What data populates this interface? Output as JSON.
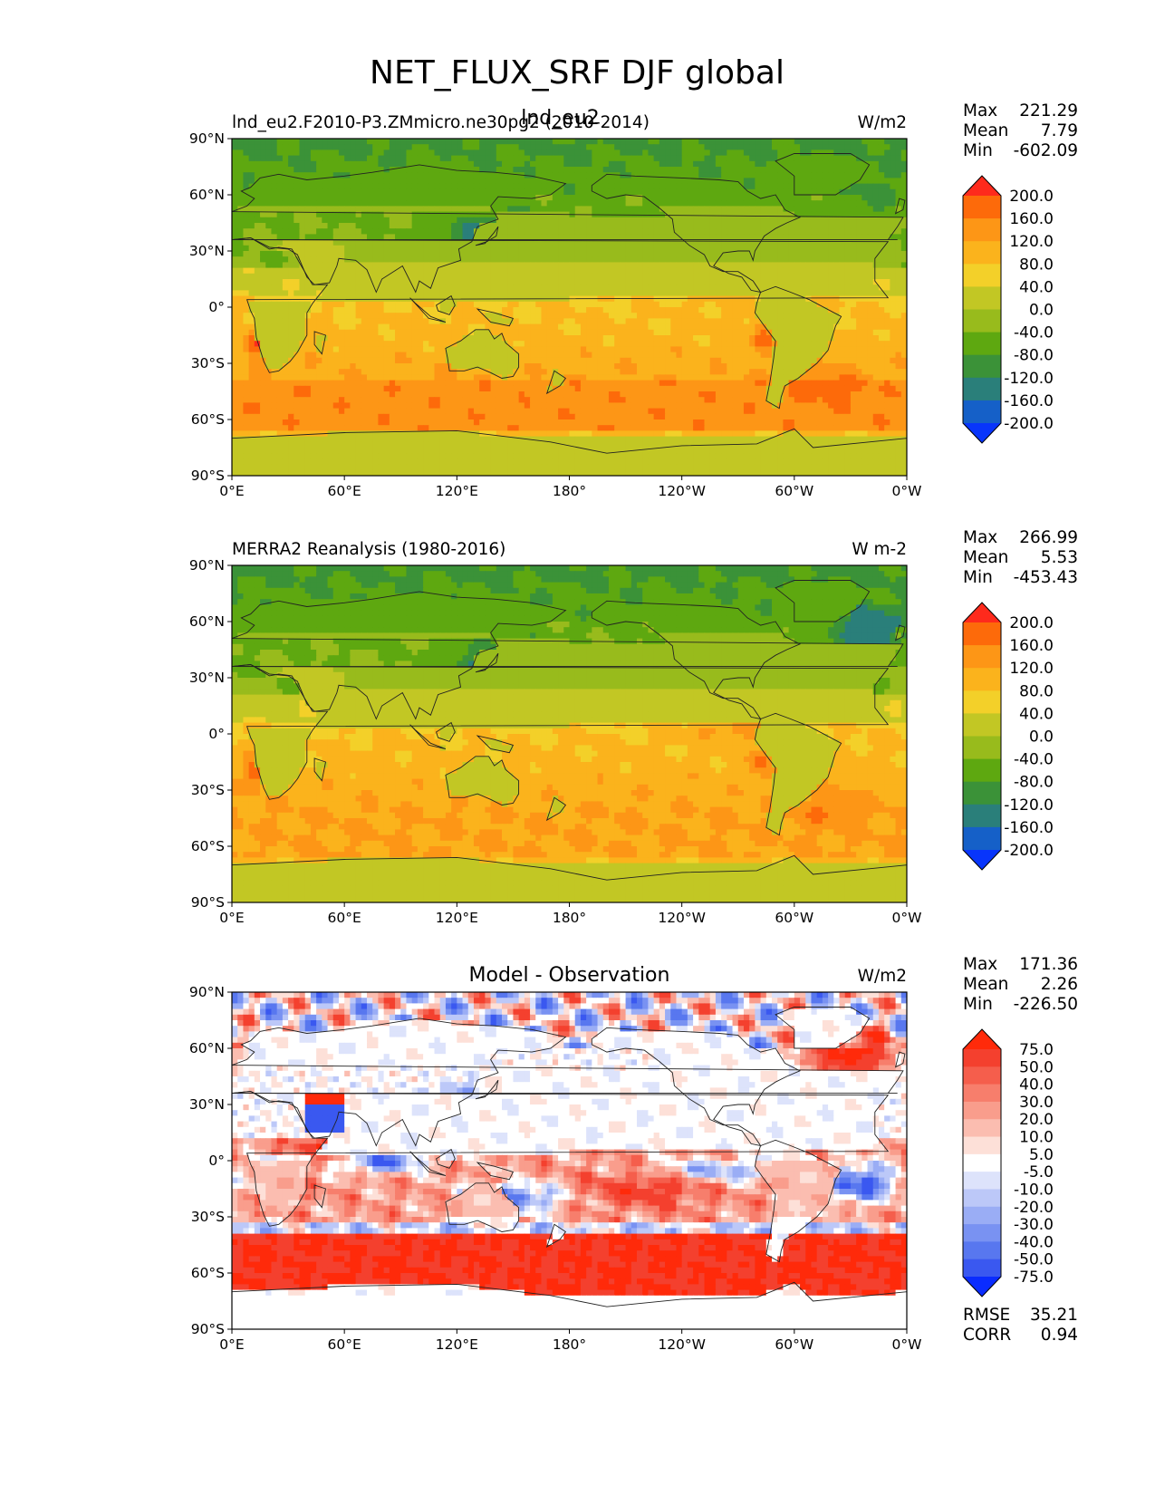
{
  "figure": {
    "suptitle": "NET_FLUX_SRF DJF global",
    "model_case_overlay": "lnd_eu2"
  },
  "axes": {
    "lat_ticks": [
      "90°N",
      "60°N",
      "30°N",
      "0°",
      "30°S",
      "60°S",
      "90°S"
    ],
    "lon_ticks": [
      "0°E",
      "60°E",
      "120°E",
      "180°",
      "120°W",
      "60°W",
      "0°W"
    ]
  },
  "chart_data": [
    {
      "type": "heatmap",
      "panel": "test",
      "title": "",
      "left_title": "lnd_eu2.F2010-P3.ZMmicro.ne30pg2 (2010-2014)",
      "right_title": "W/m2",
      "xlim": [
        0,
        360
      ],
      "ylim": [
        -90,
        90
      ],
      "stats": [
        {
          "label": "Max",
          "value": "221.29"
        },
        {
          "label": "Mean",
          "value": "7.79"
        },
        {
          "label": "Min",
          "value": "-602.09"
        }
      ],
      "colorbar": {
        "levels": [
          "200.0",
          "160.0",
          "120.0",
          "80.0",
          "40.0",
          "0.0",
          "-40.0",
          "-80.0",
          "-120.0",
          "-160.0",
          "-200.0"
        ],
        "colors": [
          "#fe2a1c",
          "#fd6a0a",
          "#fd9616",
          "#fbb31c",
          "#f3d029",
          "#c2c724",
          "#98bb1c",
          "#5ea810",
          "#3b9238",
          "#2a7f7a",
          "#1560c8",
          "#0835fb"
        ]
      }
    },
    {
      "type": "heatmap",
      "panel": "reference",
      "title": "",
      "left_title": "MERRA2 Reanalysis (1980-2016)",
      "right_title": "W m-2",
      "xlim": [
        0,
        360
      ],
      "ylim": [
        -90,
        90
      ],
      "stats": [
        {
          "label": "Max",
          "value": "266.99"
        },
        {
          "label": "Mean",
          "value": "5.53"
        },
        {
          "label": "Min",
          "value": "-453.43"
        }
      ],
      "colorbar": {
        "levels": [
          "200.0",
          "160.0",
          "120.0",
          "80.0",
          "40.0",
          "0.0",
          "-40.0",
          "-80.0",
          "-120.0",
          "-160.0",
          "-200.0"
        ],
        "colors": [
          "#fe2a1c",
          "#fd6a0a",
          "#fd9616",
          "#fbb31c",
          "#f3d029",
          "#c2c724",
          "#98bb1c",
          "#5ea810",
          "#3b9238",
          "#2a7f7a",
          "#1560c8",
          "#0835fb"
        ]
      }
    },
    {
      "type": "heatmap",
      "panel": "difference",
      "title": "Model - Observation",
      "left_title": "",
      "right_title": "W/m2",
      "xlim": [
        0,
        360
      ],
      "ylim": [
        -90,
        90
      ],
      "stats": [
        {
          "label": "Max",
          "value": "171.36"
        },
        {
          "label": "Mean",
          "value": "2.26"
        },
        {
          "label": "Min",
          "value": "-226.50"
        }
      ],
      "extra_stats": [
        {
          "label": "RMSE",
          "value": "35.21"
        },
        {
          "label": "CORR",
          "value": "0.94"
        }
      ],
      "colorbar": {
        "levels": [
          "75.0",
          "50.0",
          "40.0",
          "30.0",
          "20.0",
          "10.0",
          "5.0",
          "-5.0",
          "-10.0",
          "-20.0",
          "-30.0",
          "-40.0",
          "-50.0",
          "-75.0"
        ],
        "colors": [
          "#ff2a0a",
          "#f4402e",
          "#f55e4c",
          "#f77e6c",
          "#f99d8c",
          "#fbbdb0",
          "#fde0d8",
          "#ffffff",
          "#dde3fb",
          "#bcc8f8",
          "#9aadf5",
          "#7992f2",
          "#5877ef",
          "#3a58f0",
          "#0a2cff"
        ]
      }
    }
  ]
}
